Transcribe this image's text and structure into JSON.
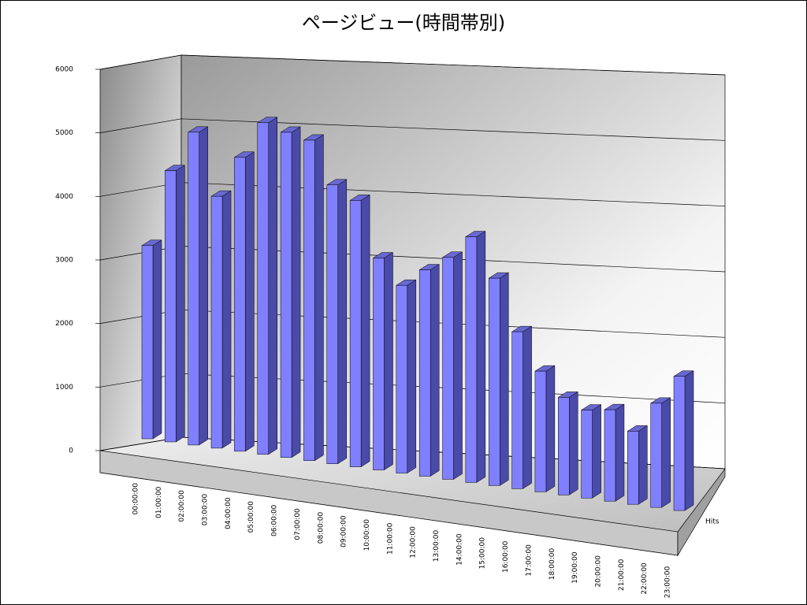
{
  "chart_data": {
    "type": "bar",
    "title": "ページビュー(時間帯別)",
    "categories": [
      "00:00:00",
      "01:00:00",
      "02:00:00",
      "03:00:00",
      "04:00:00",
      "05:00:00",
      "06:00:00",
      "07:00:00",
      "08:00:00",
      "09:00:00",
      "10:00:00",
      "11:00:00",
      "12:00:00",
      "13:00:00",
      "14:00:00",
      "15:00:00",
      "16:00:00",
      "17:00:00",
      "18:00:00",
      "19:00:00",
      "20:00:00",
      "21:00:00",
      "22:00:00",
      "23:00:00"
    ],
    "series": [
      {
        "name": "Hits",
        "color": "#8080ff",
        "values": [
          3270,
          4550,
          5200,
          4150,
          4800,
          5370,
          5220,
          5100,
          4400,
          4170,
          3290,
          2890,
          3150,
          3360,
          3690,
          3090,
          2320,
          1770,
          1420,
          1270,
          1310,
          1040,
          1470,
          1880
        ]
      }
    ],
    "ylim": [
      0,
      6000
    ],
    "yticks": [
      0,
      1000,
      2000,
      3000,
      4000,
      5000,
      6000
    ],
    "grid": true
  }
}
